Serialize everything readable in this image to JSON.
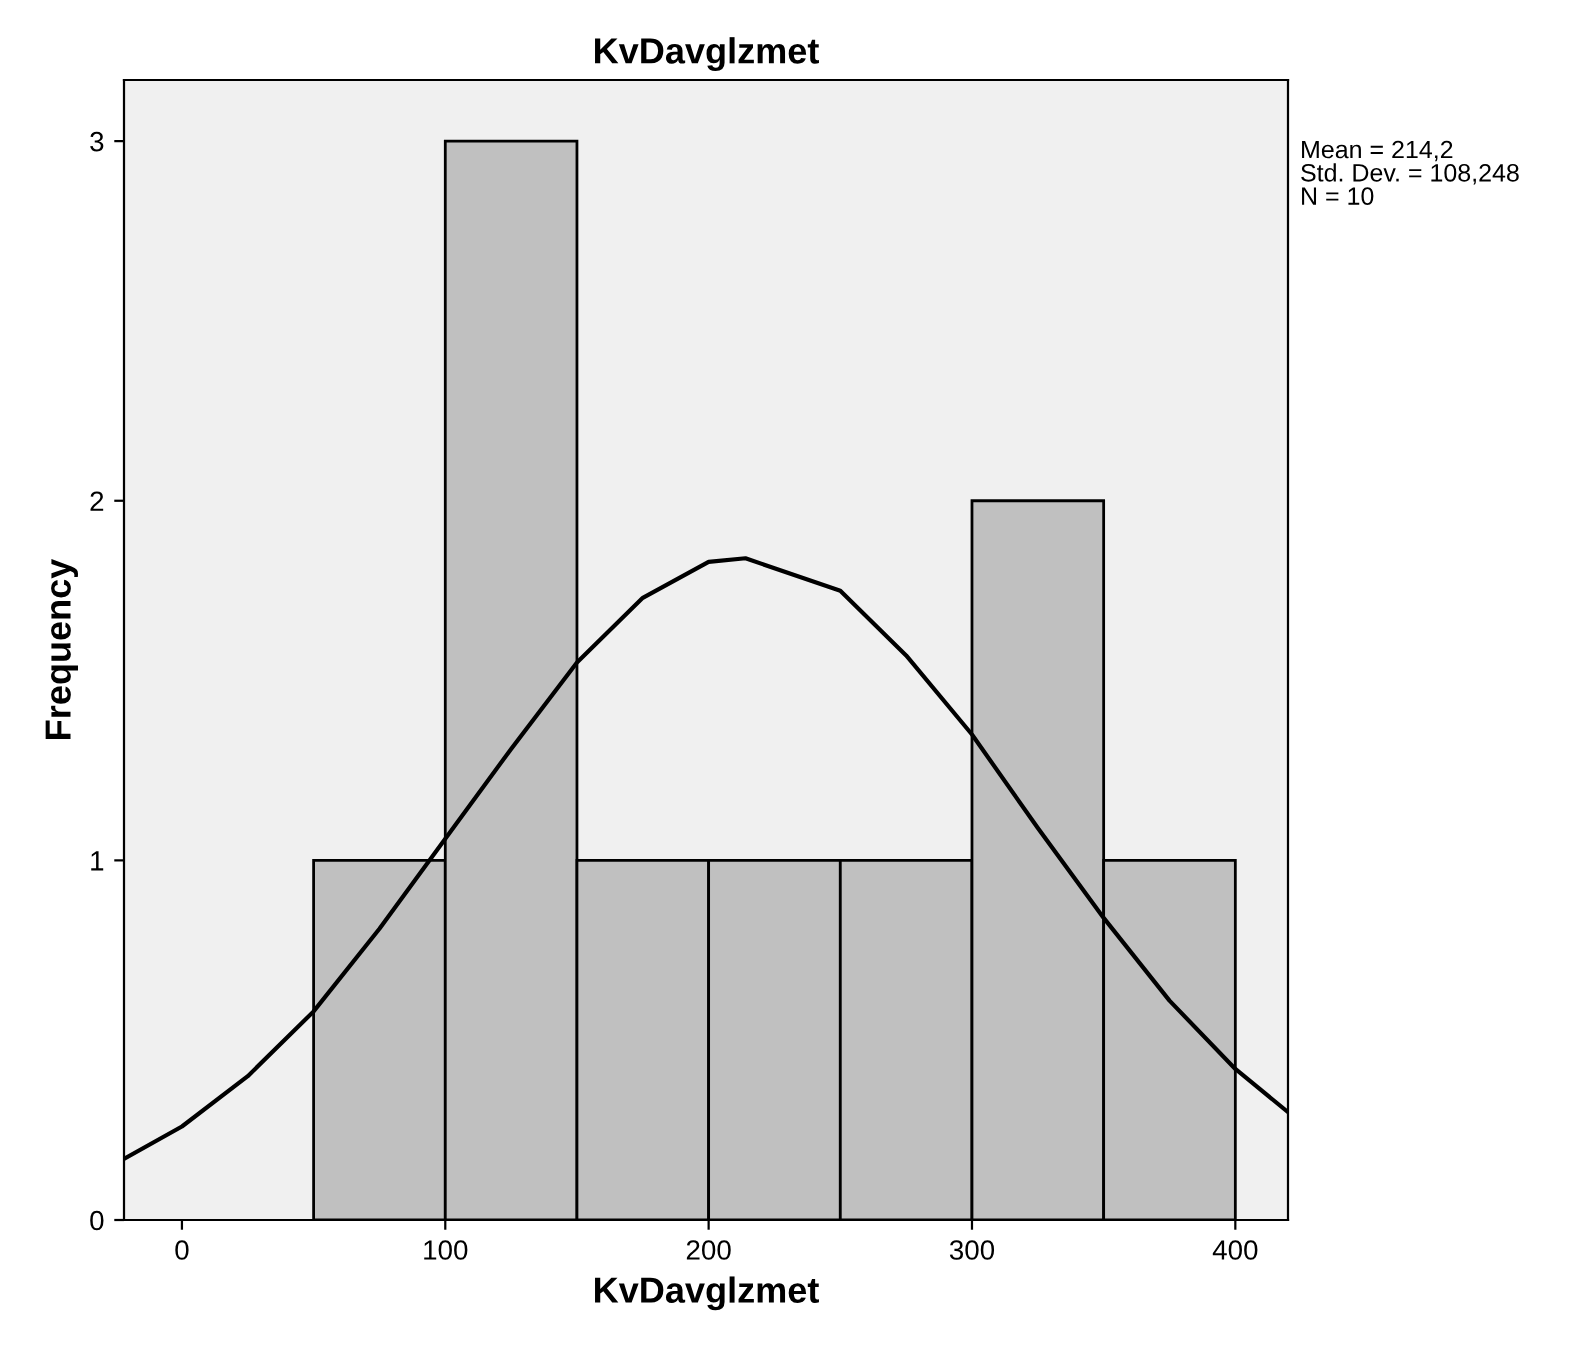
{
  "chart_data": {
    "type": "histogram",
    "title": "KvDavglzmet",
    "xlabel": "KvDavglzmet",
    "ylabel": "Frequency",
    "bins": [
      50,
      100,
      150,
      200,
      250,
      300,
      350,
      400
    ],
    "values": [
      1,
      3,
      1,
      1,
      1,
      2,
      1
    ],
    "color": "#c0c0c0",
    "series": [
      {
        "type": "line",
        "color": "#000000",
        "x": [
          -22,
          0,
          25,
          50,
          75,
          100,
          125,
          150,
          175,
          200,
          214,
          250,
          275,
          300,
          325,
          350,
          375,
          400,
          420
        ],
        "values": [
          0.17,
          0.26,
          0.4,
          0.58,
          0.81,
          1.06,
          1.31,
          1.55,
          1.73,
          1.83,
          1.84,
          1.75,
          1.57,
          1.35,
          1.09,
          0.84,
          0.61,
          0.42,
          0.3
        ]
      }
    ],
    "xlim": [
      -22,
      420
    ],
    "ylim": [
      0,
      3.17
    ],
    "xticks": [
      0,
      100,
      200,
      300,
      400
    ],
    "yticks": [
      0,
      1,
      2,
      3
    ],
    "grid": false,
    "annotations": [
      "Mean = 214,2",
      "Std. Dev. = 108,248",
      "N = 10"
    ]
  }
}
